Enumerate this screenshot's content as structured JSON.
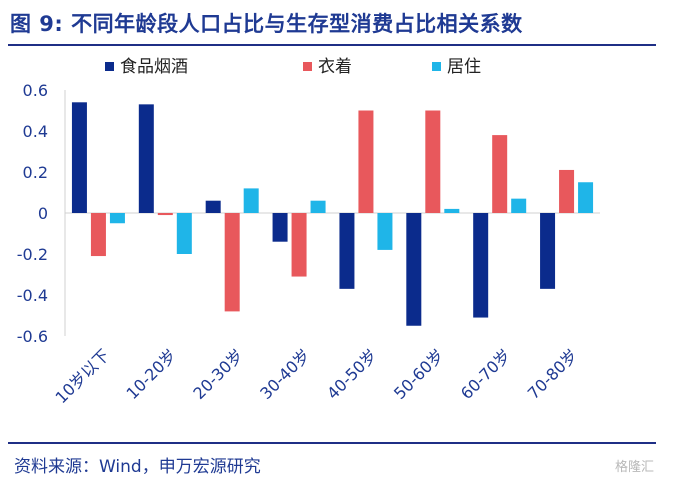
{
  "figure_title": "图 9: 不同年龄段人口占比与生存型消费占比相关系数",
  "source_note": "资料来源：Wind，申万宏源研究",
  "watermark": "格隆汇",
  "colors": {
    "food_tobacco_alcohol": "#0b2b8c",
    "clothing": "#e8585c",
    "housing": "#1fb5e8",
    "title": "#1f3a93",
    "rule": "#1f2f86"
  },
  "chart_data": {
    "type": "bar",
    "categories": [
      "10岁以下",
      "10-20岁",
      "20-30岁",
      "30-40岁",
      "40-50岁",
      "50-60岁",
      "60-70岁",
      "70-80岁"
    ],
    "series": [
      {
        "name": "食品烟酒",
        "values": [
          0.54,
          0.53,
          0.06,
          -0.14,
          -0.37,
          -0.55,
          -0.51,
          -0.37
        ]
      },
      {
        "name": "衣着",
        "values": [
          -0.21,
          -0.01,
          -0.48,
          -0.31,
          0.5,
          0.5,
          0.38,
          0.21
        ]
      },
      {
        "name": "居住",
        "values": [
          -0.05,
          -0.2,
          0.12,
          0.06,
          -0.18,
          0.02,
          0.07,
          0.15
        ]
      }
    ],
    "ylim": [
      -0.6,
      0.6
    ],
    "yticks": [
      0.6,
      0.4,
      0.2,
      0,
      -0.2,
      -0.4,
      -0.6
    ],
    "ytick_labels": [
      "0.6",
      "0.4",
      "0.2",
      "0",
      "-0.2",
      "-0.4",
      "-0.6"
    ],
    "xlabel": "",
    "ylabel": "",
    "legend_position": "top",
    "grid": false
  }
}
